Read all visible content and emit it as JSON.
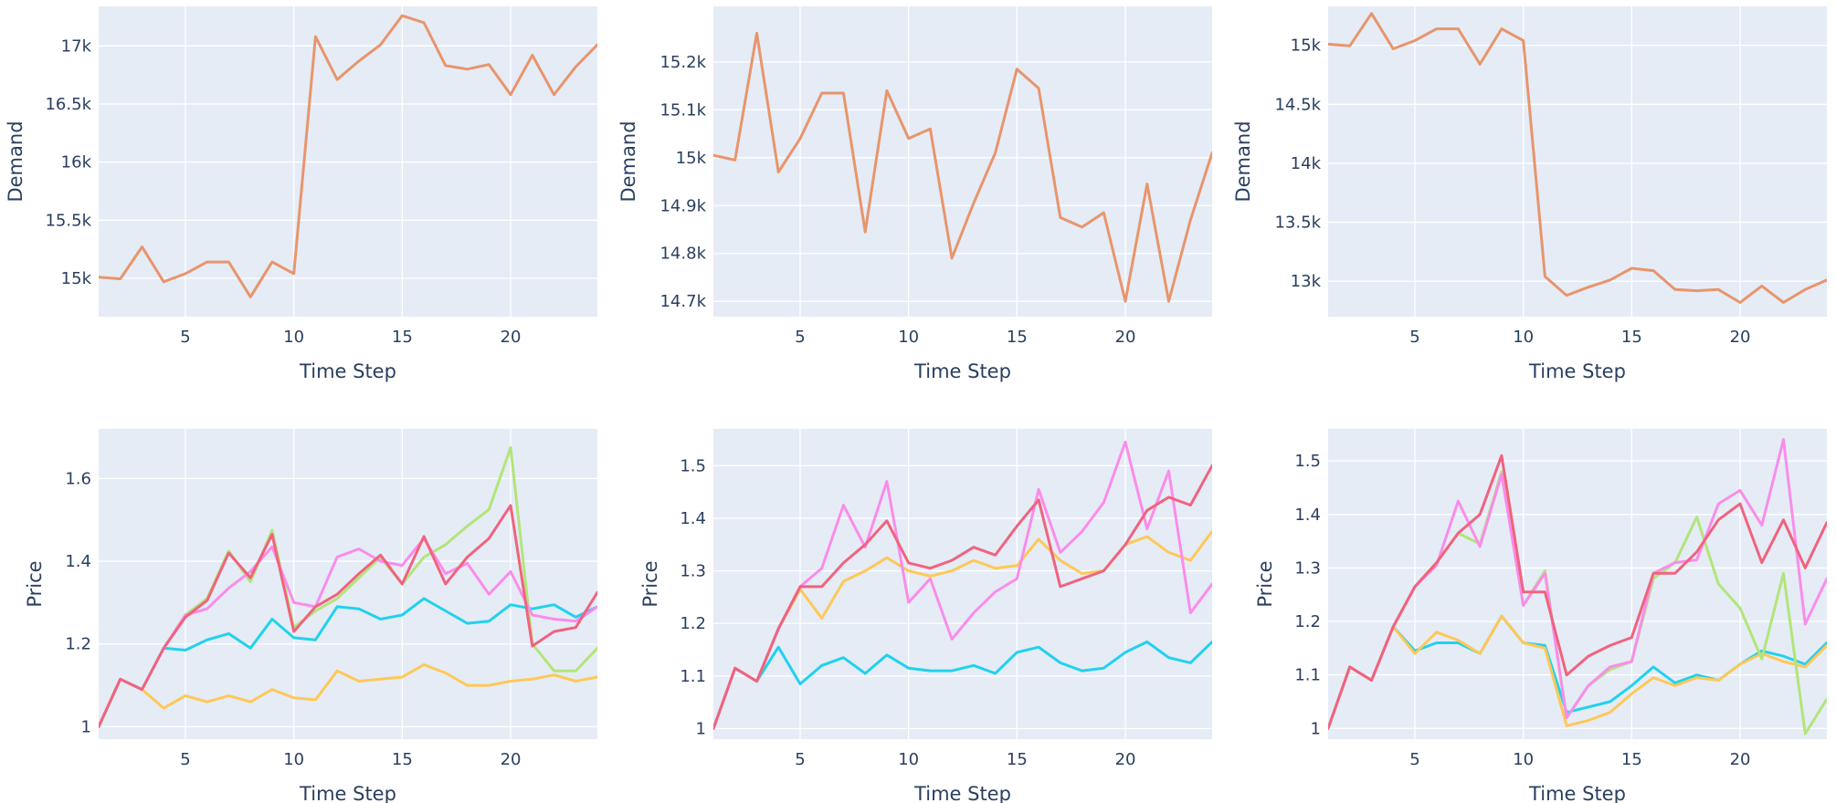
{
  "colors": {
    "plot_bg": "#E5ECF6",
    "grid": "#ffffff",
    "text": "#2a3f5f",
    "demand_line": "#E8956C",
    "price_red": "#F0637F",
    "price_cyan": "#22D1EE",
    "price_green": "#B2E57B",
    "price_pink": "#FA8CEB",
    "price_yellow": "#FFC857"
  },
  "chart_data": [
    {
      "type": "line",
      "xlabel": "Time Step",
      "ylabel": "Demand",
      "xlim": [
        1,
        24
      ],
      "ylim": [
        14670,
        17340
      ],
      "grid": true,
      "xticks": [
        5,
        10,
        15,
        20
      ],
      "xtick_labels": [
        "5",
        "10",
        "15",
        "20"
      ],
      "yticks": [
        15000,
        15500,
        16000,
        16500,
        17000
      ],
      "ytick_labels": [
        "15k",
        "15.5k",
        "16k",
        "16.5k",
        "17k"
      ],
      "x": [
        1,
        2,
        3,
        4,
        5,
        6,
        7,
        8,
        9,
        10,
        11,
        12,
        13,
        14,
        15,
        16,
        17,
        18,
        19,
        20,
        21,
        22,
        23,
        24
      ],
      "series": [
        {
          "color_key": "demand_line",
          "values": [
            15010,
            14995,
            15270,
            14970,
            15040,
            15140,
            15140,
            14840,
            15140,
            15040,
            17080,
            16710,
            16870,
            17010,
            17260,
            17200,
            16830,
            16800,
            16840,
            16580,
            16920,
            16580,
            16820,
            17010
          ]
        }
      ]
    },
    {
      "type": "line",
      "xlabel": "Time Step",
      "ylabel": "Demand",
      "xlim": [
        1,
        24
      ],
      "ylim": [
        14668,
        15316
      ],
      "grid": true,
      "xticks": [
        5,
        10,
        15,
        20
      ],
      "xtick_labels": [
        "5",
        "10",
        "15",
        "20"
      ],
      "yticks": [
        14700,
        14800,
        14900,
        15000,
        15100,
        15200
      ],
      "ytick_labels": [
        "14.7k",
        "14.8k",
        "14.9k",
        "15k",
        "15.1k",
        "15.2k"
      ],
      "x": [
        1,
        2,
        3,
        4,
        5,
        6,
        7,
        8,
        9,
        10,
        11,
        12,
        13,
        14,
        15,
        16,
        17,
        18,
        19,
        20,
        21,
        22,
        23,
        24
      ],
      "series": [
        {
          "color_key": "demand_line",
          "values": [
            15005,
            14995,
            15260,
            14970,
            15040,
            15135,
            15135,
            14845,
            15140,
            15040,
            15060,
            14790,
            14905,
            15010,
            15185,
            15145,
            14875,
            14855,
            14885,
            14700,
            14945,
            14700,
            14870,
            15010
          ]
        }
      ]
    },
    {
      "type": "line",
      "xlabel": "Time Step",
      "ylabel": "Demand",
      "xlim": [
        1,
        24
      ],
      "ylim": [
        12700,
        15330
      ],
      "grid": true,
      "xticks": [
        5,
        10,
        15,
        20
      ],
      "xtick_labels": [
        "5",
        "10",
        "15",
        "20"
      ],
      "yticks": [
        13000,
        13500,
        14000,
        14500,
        15000
      ],
      "ytick_labels": [
        "13k",
        "13.5k",
        "14k",
        "14.5k",
        "15k"
      ],
      "x": [
        1,
        2,
        3,
        4,
        5,
        6,
        7,
        8,
        9,
        10,
        11,
        12,
        13,
        14,
        15,
        16,
        17,
        18,
        19,
        20,
        21,
        22,
        23,
        24
      ],
      "series": [
        {
          "color_key": "demand_line",
          "values": [
            15010,
            14995,
            15270,
            14970,
            15040,
            15140,
            15140,
            14840,
            15140,
            15040,
            13040,
            12880,
            12950,
            13010,
            13110,
            13090,
            12930,
            12920,
            12930,
            12820,
            12960,
            12820,
            12930,
            13010
          ]
        }
      ]
    },
    {
      "type": "line",
      "xlabel": "Time Step",
      "ylabel": "Price",
      "xlim": [
        1,
        24
      ],
      "ylim": [
        0.97,
        1.72
      ],
      "grid": true,
      "xticks": [
        5,
        10,
        15,
        20
      ],
      "xtick_labels": [
        "5",
        "10",
        "15",
        "20"
      ],
      "yticks": [
        1.0,
        1.2,
        1.4,
        1.6
      ],
      "ytick_labels": [
        "1",
        "1.2",
        "1.4",
        "1.6"
      ],
      "x": [
        1,
        2,
        3,
        4,
        5,
        6,
        7,
        8,
        9,
        10,
        11,
        12,
        13,
        14,
        15,
        16,
        17,
        18,
        19,
        20,
        21,
        22,
        23,
        24
      ],
      "series": [
        {
          "color_key": "price_cyan",
          "values": [
            1.0,
            1.115,
            1.09,
            1.19,
            1.185,
            1.21,
            1.225,
            1.19,
            1.26,
            1.215,
            1.21,
            1.29,
            1.285,
            1.26,
            1.27,
            1.31,
            1.28,
            1.25,
            1.255,
            1.295,
            1.285,
            1.295,
            1.265,
            1.29
          ]
        },
        {
          "color_key": "price_yellow",
          "values": [
            1.0,
            1.115,
            1.09,
            1.045,
            1.075,
            1.06,
            1.075,
            1.06,
            1.09,
            1.07,
            1.065,
            1.135,
            1.11,
            1.115,
            1.12,
            1.15,
            1.13,
            1.1,
            1.1,
            1.11,
            1.115,
            1.125,
            1.11,
            1.12
          ]
        },
        {
          "color_key": "price_green",
          "values": [
            1.0,
            1.115,
            1.09,
            1.19,
            1.27,
            1.31,
            1.425,
            1.35,
            1.475,
            1.24,
            1.28,
            1.31,
            1.36,
            1.41,
            1.345,
            1.41,
            1.44,
            1.485,
            1.525,
            1.675,
            1.2,
            1.135,
            1.135,
            1.19
          ]
        },
        {
          "color_key": "price_pink",
          "values": [
            1.0,
            1.115,
            1.09,
            1.19,
            1.27,
            1.285,
            1.335,
            1.375,
            1.435,
            1.3,
            1.29,
            1.41,
            1.43,
            1.4,
            1.39,
            1.455,
            1.37,
            1.395,
            1.32,
            1.375,
            1.27,
            1.26,
            1.255,
            1.29
          ]
        },
        {
          "color_key": "price_red",
          "values": [
            1.0,
            1.115,
            1.09,
            1.19,
            1.265,
            1.305,
            1.42,
            1.36,
            1.465,
            1.23,
            1.29,
            1.32,
            1.37,
            1.415,
            1.345,
            1.46,
            1.345,
            1.41,
            1.455,
            1.535,
            1.195,
            1.23,
            1.24,
            1.325
          ]
        }
      ]
    },
    {
      "type": "line",
      "xlabel": "Time Step",
      "ylabel": "Price",
      "xlim": [
        1,
        24
      ],
      "ylim": [
        0.98,
        1.57
      ],
      "grid": true,
      "xticks": [
        5,
        10,
        15,
        20
      ],
      "xtick_labels": [
        "5",
        "10",
        "15",
        "20"
      ],
      "yticks": [
        1.0,
        1.1,
        1.2,
        1.3,
        1.4,
        1.5
      ],
      "ytick_labels": [
        "1",
        "1.1",
        "1.2",
        "1.3",
        "1.4",
        "1.5"
      ],
      "x": [
        1,
        2,
        3,
        4,
        5,
        6,
        7,
        8,
        9,
        10,
        11,
        12,
        13,
        14,
        15,
        16,
        17,
        18,
        19,
        20,
        21,
        22,
        23,
        24
      ],
      "series": [
        {
          "color_key": "price_cyan",
          "values": [
            1.0,
            1.115,
            1.09,
            1.155,
            1.085,
            1.12,
            1.135,
            1.105,
            1.14,
            1.115,
            1.11,
            1.11,
            1.12,
            1.105,
            1.145,
            1.155,
            1.125,
            1.11,
            1.115,
            1.145,
            1.165,
            1.135,
            1.125,
            1.165
          ]
        },
        {
          "color_key": "price_yellow",
          "values": [
            1.0,
            1.115,
            1.09,
            1.19,
            1.265,
            1.21,
            1.28,
            1.3,
            1.325,
            1.3,
            1.29,
            1.3,
            1.32,
            1.305,
            1.31,
            1.36,
            1.32,
            1.295,
            1.3,
            1.35,
            1.365,
            1.335,
            1.32,
            1.375
          ]
        },
        {
          "color_key": "price_pink",
          "values": [
            1.0,
            1.115,
            1.09,
            1.19,
            1.27,
            1.305,
            1.425,
            1.345,
            1.47,
            1.24,
            1.285,
            1.17,
            1.22,
            1.26,
            1.285,
            1.455,
            1.335,
            1.375,
            1.43,
            1.545,
            1.38,
            1.49,
            1.22,
            1.275
          ]
        },
        {
          "color_key": "price_red",
          "values": [
            1.0,
            1.115,
            1.09,
            1.19,
            1.27,
            1.27,
            1.315,
            1.35,
            1.395,
            1.315,
            1.305,
            1.32,
            1.345,
            1.33,
            1.385,
            1.435,
            1.27,
            1.285,
            1.3,
            1.35,
            1.415,
            1.44,
            1.425,
            1.5
          ]
        }
      ]
    },
    {
      "type": "line",
      "xlabel": "Time Step",
      "ylabel": "Price",
      "xlim": [
        1,
        24
      ],
      "ylim": [
        0.98,
        1.56
      ],
      "grid": true,
      "xticks": [
        5,
        10,
        15,
        20
      ],
      "xtick_labels": [
        "5",
        "10",
        "15",
        "20"
      ],
      "yticks": [
        1.0,
        1.1,
        1.2,
        1.3,
        1.4,
        1.5
      ],
      "ytick_labels": [
        "1",
        "1.1",
        "1.2",
        "1.3",
        "1.4",
        "1.5"
      ],
      "x": [
        1,
        2,
        3,
        4,
        5,
        6,
        7,
        8,
        9,
        10,
        11,
        12,
        13,
        14,
        15,
        16,
        17,
        18,
        19,
        20,
        21,
        22,
        23,
        24
      ],
      "series": [
        {
          "color_key": "price_cyan",
          "values": [
            1.0,
            1.115,
            1.09,
            1.19,
            1.145,
            1.16,
            1.16,
            1.14,
            1.21,
            1.16,
            1.155,
            1.03,
            1.04,
            1.05,
            1.08,
            1.115,
            1.085,
            1.1,
            1.09,
            1.12,
            1.145,
            1.135,
            1.12,
            1.16
          ]
        },
        {
          "color_key": "price_yellow",
          "values": [
            1.0,
            1.115,
            1.09,
            1.19,
            1.14,
            1.18,
            1.165,
            1.14,
            1.21,
            1.16,
            1.15,
            1.005,
            1.015,
            1.03,
            1.065,
            1.095,
            1.08,
            1.095,
            1.09,
            1.12,
            1.14,
            1.125,
            1.115,
            1.155
          ]
        },
        {
          "color_key": "price_green",
          "values": [
            1.0,
            1.115,
            1.09,
            1.19,
            1.265,
            1.31,
            1.365,
            1.345,
            1.48,
            1.23,
            1.295,
            1.02,
            1.08,
            1.11,
            1.125,
            1.28,
            1.31,
            1.395,
            1.27,
            1.225,
            1.13,
            1.29,
            0.99,
            1.055
          ]
        },
        {
          "color_key": "price_pink",
          "values": [
            1.0,
            1.115,
            1.09,
            1.19,
            1.265,
            1.305,
            1.425,
            1.34,
            1.475,
            1.23,
            1.29,
            1.02,
            1.08,
            1.115,
            1.125,
            1.29,
            1.31,
            1.315,
            1.42,
            1.445,
            1.38,
            1.54,
            1.195,
            1.28
          ]
        },
        {
          "color_key": "price_red",
          "values": [
            1.0,
            1.115,
            1.09,
            1.19,
            1.265,
            1.31,
            1.365,
            1.4,
            1.51,
            1.255,
            1.255,
            1.1,
            1.135,
            1.155,
            1.17,
            1.29,
            1.29,
            1.33,
            1.39,
            1.42,
            1.31,
            1.39,
            1.3,
            1.385
          ]
        }
      ]
    }
  ]
}
